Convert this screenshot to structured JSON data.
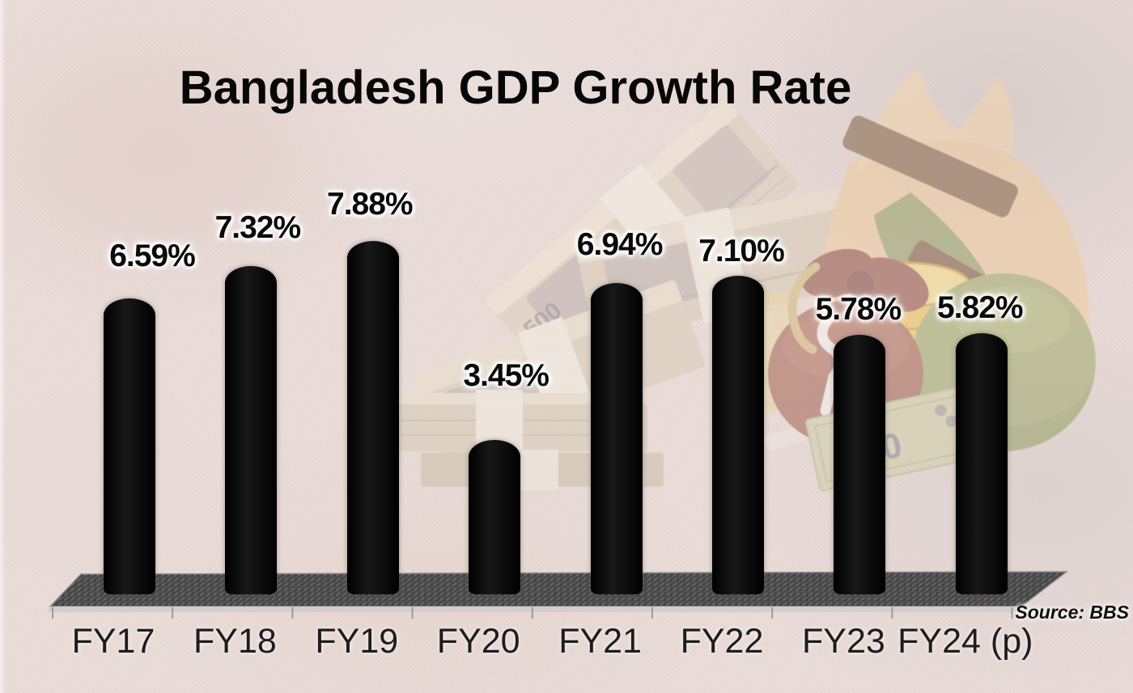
{
  "page": {
    "title": "Bangladesh GDP Growth Rate",
    "source_note": "Source: BBS"
  },
  "chart_data": {
    "type": "bar",
    "title": "Bangladesh GDP Growth Rate",
    "categories": [
      "FY17",
      "FY18",
      "FY19",
      "FY20",
      "FY21",
      "FY22",
      "FY23",
      "FY24 (p)"
    ],
    "values": [
      6.59,
      7.32,
      7.88,
      3.45,
      6.94,
      7.1,
      5.78,
      5.82
    ],
    "value_labels": [
      "6.59%",
      "7.32%",
      "7.88%",
      "3.45%",
      "6.94%",
      "7.10%",
      "5.78%",
      "5.82%"
    ],
    "unit": "percent",
    "ylim": [
      0,
      8.5
    ],
    "grid": false,
    "legend": "none",
    "bar_color": "#0b0b0b",
    "source": "Source: BBS"
  },
  "colors": {
    "background": "#e9dbd7",
    "bar": "#0b0b0b",
    "floor": "#4a4a4a",
    "text": "#111111"
  },
  "illustration": {
    "items": [
      "banknote-bundles",
      "gold-coin-stack",
      "tan-money-bag",
      "green-money-bag",
      "red-money-pouch",
      "banknote"
    ]
  }
}
